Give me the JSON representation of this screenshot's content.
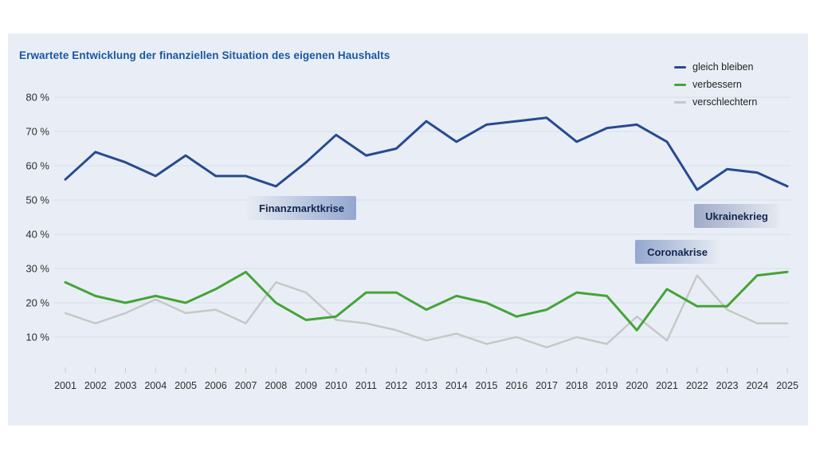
{
  "title": "Erwartete Entwicklung der finanziellen Situation des eigenen Haushalts",
  "colors": {
    "panel_background": "#e9eef6",
    "title_text": "#1857a4",
    "gridline": "#dce1eb",
    "tick": "#c4c9d6",
    "axis_text": "#2e2e2e",
    "annotation_text": "#14254d",
    "annotation_gradient_strong": "#93a7d0",
    "annotation_gradient_light": "#e7ebf3"
  },
  "legend": [
    {
      "label": "gleich bleiben",
      "color": "#274b90"
    },
    {
      "label": "verbessern",
      "color": "#45a437"
    },
    {
      "label": "verschlechtern",
      "color": "#c7c7c7"
    }
  ],
  "annotations": [
    {
      "label": "Finanzmarktkrise"
    },
    {
      "label": "Coronakrise"
    },
    {
      "label": "Ukrainekrieg"
    }
  ],
  "chart_data": {
    "type": "line",
    "title": "Erwartete Entwicklung der finanziellen Situation des eigenen Haushalts",
    "x": [
      2001,
      2002,
      2003,
      2004,
      2005,
      2006,
      2007,
      2008,
      2009,
      2010,
      2011,
      2012,
      2013,
      2014,
      2015,
      2016,
      2017,
      2018,
      2019,
      2020,
      2021,
      2022,
      2023,
      2024,
      2025
    ],
    "series": [
      {
        "name": "gleich bleiben",
        "color": "#274b90",
        "values": [
          56,
          64,
          61,
          57,
          63,
          57,
          57,
          54,
          61,
          69,
          63,
          65,
          73,
          67,
          72,
          73,
          74,
          67,
          71,
          72,
          67,
          53,
          59,
          58,
          54
        ]
      },
      {
        "name": "verbessern",
        "color": "#45a437",
        "values": [
          26,
          22,
          20,
          22,
          20,
          24,
          29,
          20,
          15,
          16,
          23,
          23,
          18,
          22,
          20,
          16,
          18,
          23,
          22,
          12,
          24,
          19,
          19,
          28,
          29
        ]
      },
      {
        "name": "verschlechtern",
        "color": "#c7c7c7",
        "values": [
          17,
          14,
          17,
          21,
          17,
          18,
          14,
          26,
          23,
          15,
          14,
          12,
          9,
          11,
          8,
          10,
          7,
          10,
          8,
          16,
          9,
          28,
          18,
          14,
          14
        ]
      }
    ],
    "y_ticks": [
      80,
      70,
      60,
      50,
      40,
      30,
      20,
      10
    ],
    "y_tick_suffix": " %",
    "ylim": [
      5,
      85
    ],
    "grid": true,
    "legend_position": "top-right",
    "xlabel": "",
    "ylabel": ""
  }
}
